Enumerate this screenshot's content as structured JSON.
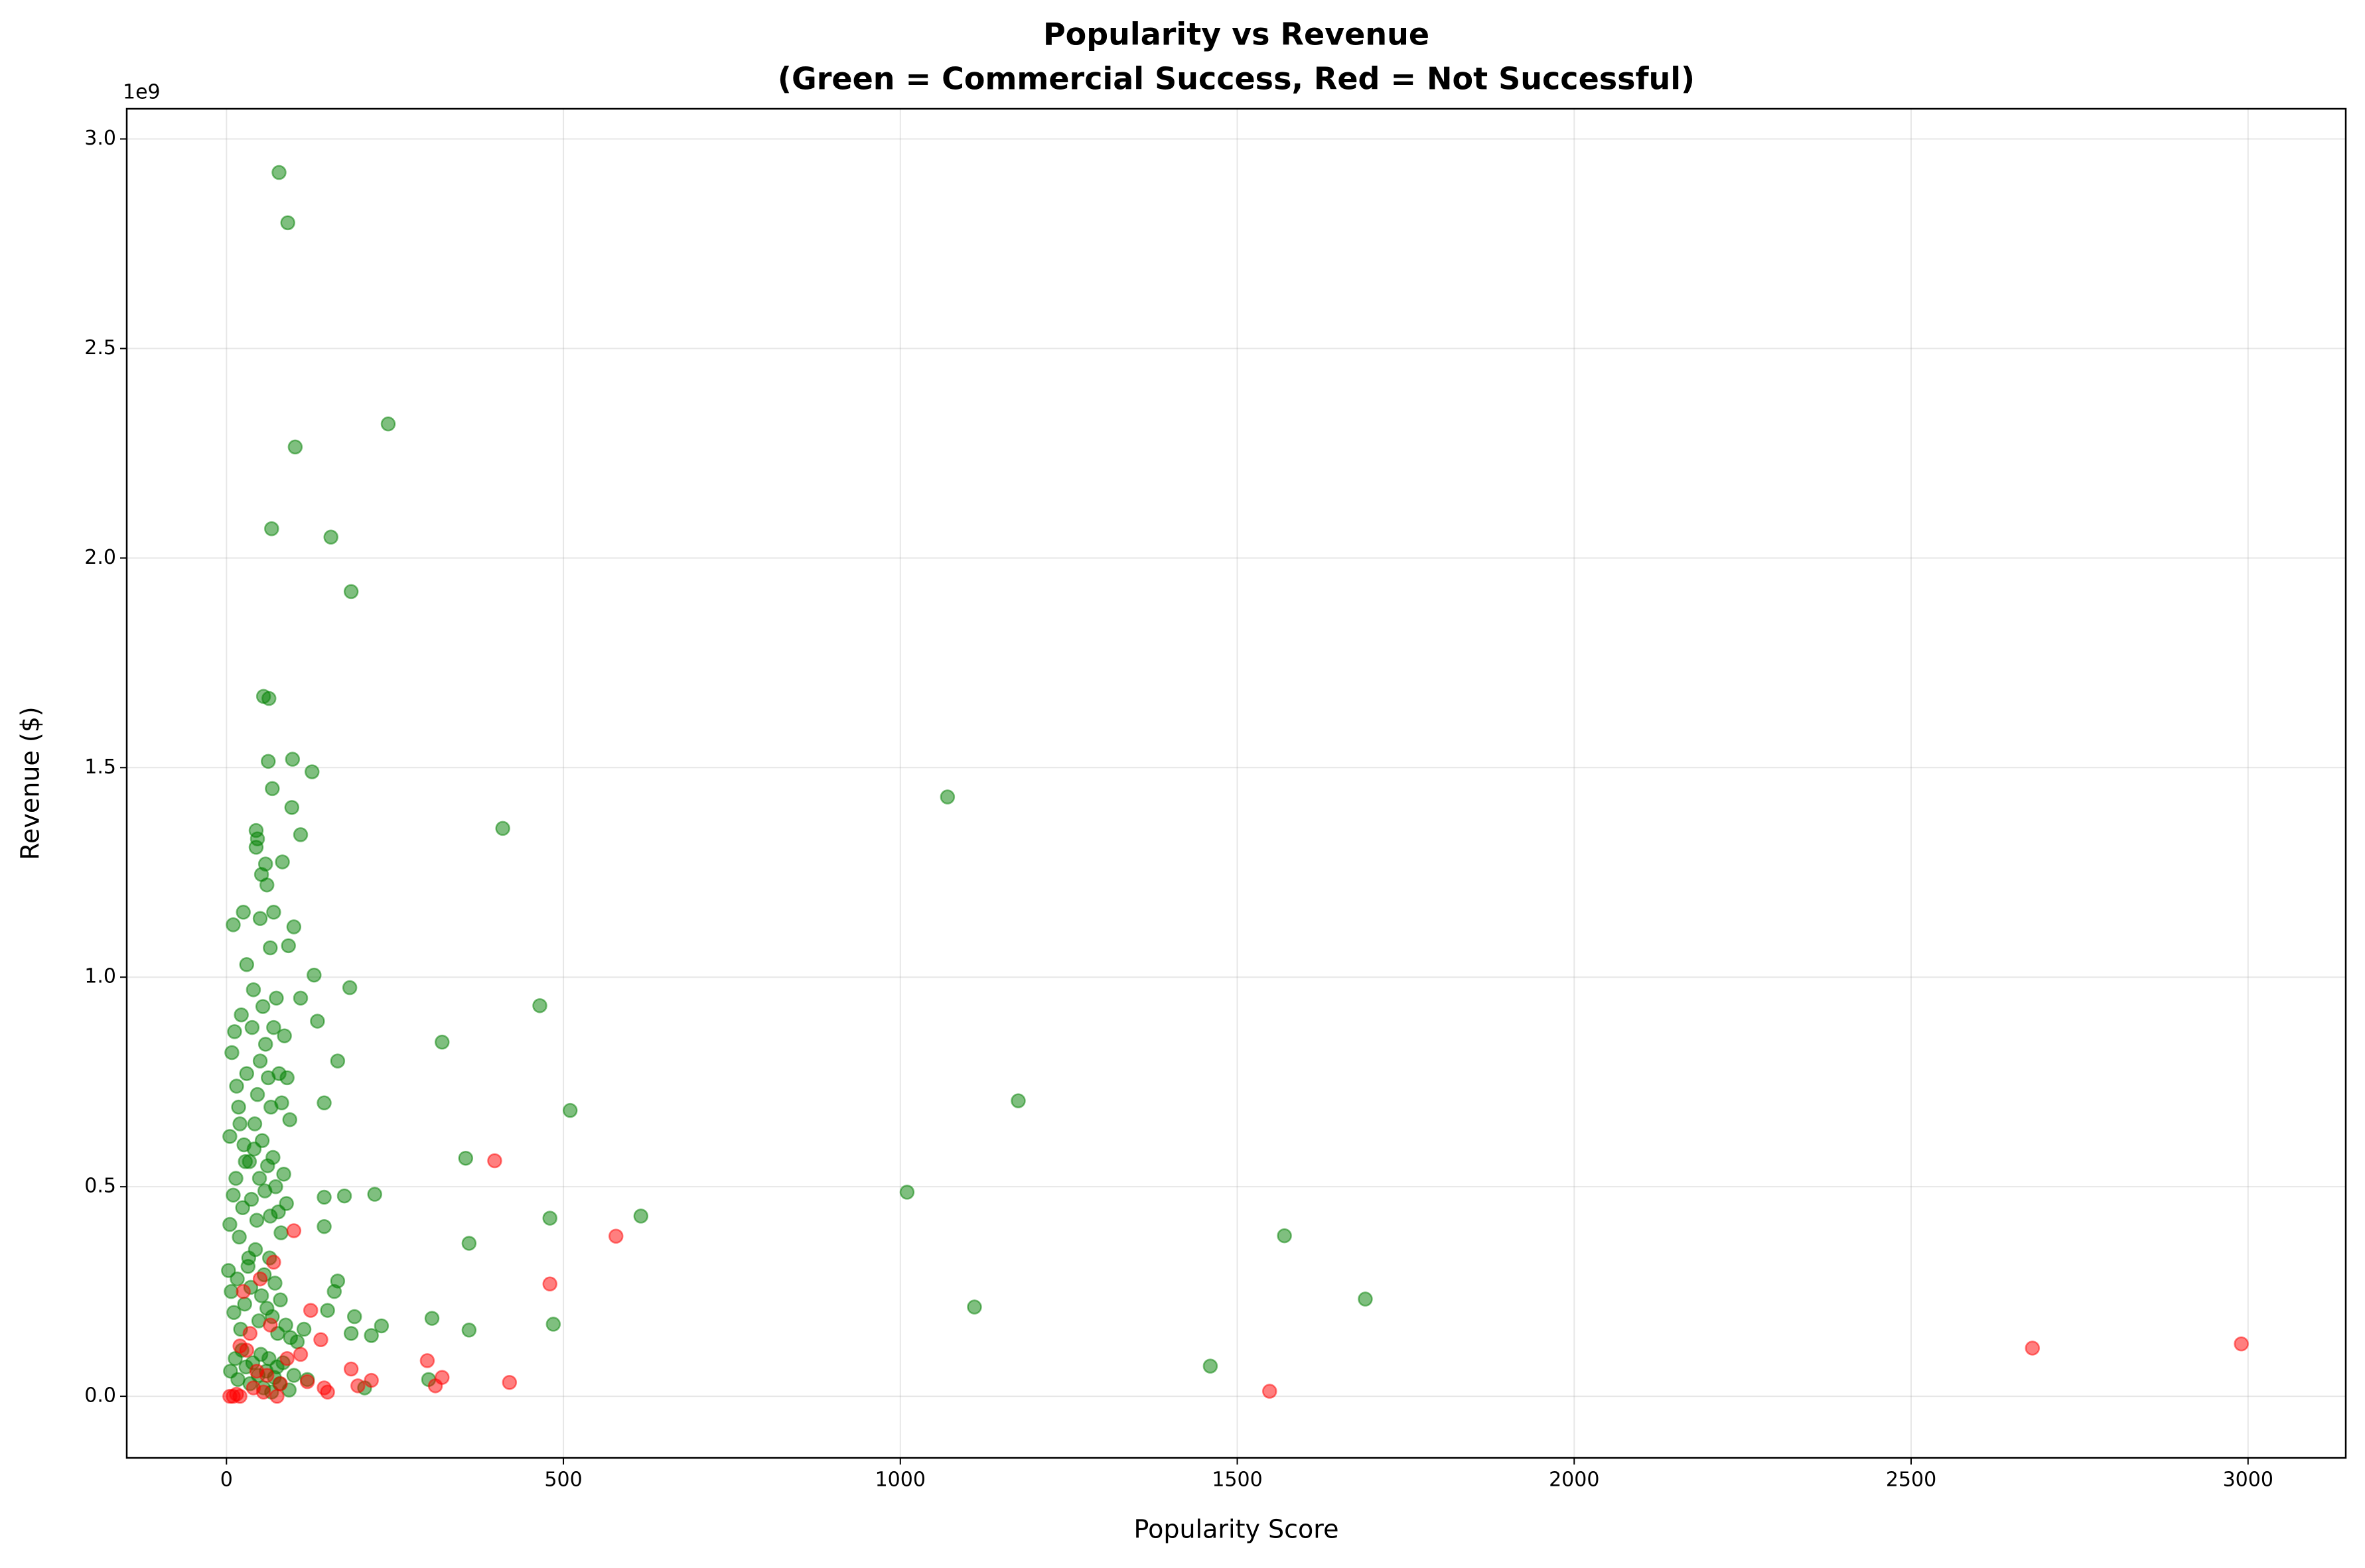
{
  "chart_data": {
    "type": "scatter",
    "title": "Popularity vs Revenue",
    "subtitle": "(Green = Commercial Success, Red = Not Successful)",
    "x_label": "Popularity Score",
    "y_label": "Revenue ($)",
    "y_offset_text": "1e9",
    "xlim": [
      -148,
      3145
    ],
    "ylim": [
      -147000000,
      3072000000
    ],
    "xticks": [
      0,
      500,
      1000,
      1500,
      2000,
      2500,
      3000
    ],
    "yticks": [
      {
        "value": 0,
        "label": "0.0"
      },
      {
        "value": 500000000,
        "label": "0.5"
      },
      {
        "value": 1000000000,
        "label": "1.0"
      },
      {
        "value": 1500000000,
        "label": "1.5"
      },
      {
        "value": 2000000000,
        "label": "2.0"
      },
      {
        "value": 2500000000,
        "label": "2.5"
      },
      {
        "value": 3000000000,
        "label": "3.0"
      }
    ],
    "grid": true,
    "series": [
      {
        "color": "#008000",
        "x": [
          78,
          91,
          240,
          102,
          67,
          155,
          185,
          55,
          63,
          1070,
          62,
          98,
          127,
          68,
          97,
          410,
          44,
          110,
          46,
          44,
          58,
          83,
          52,
          60,
          10,
          25,
          50,
          70,
          100,
          30,
          65,
          92,
          130,
          183,
          465,
          40,
          110,
          320,
          135,
          165,
          1175,
          510,
          145,
          5,
          20,
          355,
          1010,
          220,
          175,
          145,
          615,
          480,
          145,
          1570,
          360,
          165,
          1690,
          1110,
          305,
          485,
          360,
          230,
          185,
          215,
          1460,
          300,
          205,
          160,
          150,
          190,
          8,
          12,
          15,
          18,
          22,
          26,
          30,
          34,
          38,
          42,
          46,
          50,
          54,
          58,
          62,
          66,
          70,
          74,
          78,
          82,
          86,
          90,
          94,
          5,
          10,
          14,
          19,
          24,
          28,
          33,
          37,
          41,
          45,
          49,
          53,
          57,
          61,
          65,
          69,
          73,
          77,
          81,
          85,
          89,
          3,
          7,
          11,
          16,
          21,
          27,
          32,
          36,
          43,
          48,
          52,
          56,
          60,
          64,
          68,
          72,
          76,
          80,
          88,
          95,
          105,
          115,
          6,
          13,
          17,
          23,
          29,
          35,
          39,
          47,
          51,
          55,
          59,
          63,
          67,
          71,
          75,
          79,
          84,
          93,
          100,
          120
        ],
        "values": [
          2920000000,
          2800000000,
          2320000000,
          2265000000,
          2070000000,
          2050000000,
          1920000000,
          1670000000,
          1665000000,
          1430000000,
          1515000000,
          1520000000,
          1490000000,
          1450000000,
          1405000000,
          1355000000,
          1350000000,
          1340000000,
          1330000000,
          1310000000,
          1270000000,
          1275000000,
          1245000000,
          1220000000,
          1125000000,
          1155000000,
          1140000000,
          1155000000,
          1120000000,
          1030000000,
          1070000000,
          1075000000,
          1005000000,
          975000000,
          932000000,
          970000000,
          950000000,
          845000000,
          895000000,
          800000000,
          705000000,
          682000000,
          700000000,
          620000000,
          650000000,
          568000000,
          487000000,
          482000000,
          478000000,
          475000000,
          430000000,
          425000000,
          405000000,
          383000000,
          365000000,
          275000000,
          232000000,
          213000000,
          186000000,
          172000000,
          158000000,
          168000000,
          150000000,
          145000000,
          72000000,
          40000000,
          20000000,
          250000000,
          205000000,
          190000000,
          820000000,
          870000000,
          740000000,
          690000000,
          910000000,
          600000000,
          770000000,
          560000000,
          880000000,
          650000000,
          720000000,
          800000000,
          930000000,
          840000000,
          760000000,
          690000000,
          880000000,
          950000000,
          770000000,
          700000000,
          860000000,
          760000000,
          660000000,
          410000000,
          480000000,
          520000000,
          380000000,
          450000000,
          560000000,
          330000000,
          470000000,
          590000000,
          420000000,
          520000000,
          610000000,
          490000000,
          550000000,
          430000000,
          570000000,
          500000000,
          440000000,
          390000000,
          530000000,
          460000000,
          300000000,
          250000000,
          200000000,
          280000000,
          160000000,
          220000000,
          310000000,
          260000000,
          350000000,
          180000000,
          240000000,
          290000000,
          210000000,
          330000000,
          190000000,
          270000000,
          150000000,
          230000000,
          170000000,
          140000000,
          130000000,
          160000000,
          60000000,
          90000000,
          40000000,
          110000000,
          70000000,
          30000000,
          80000000,
          50000000,
          100000000,
          20000000,
          60000000,
          90000000,
          10000000,
          45000000,
          70000000,
          30000000,
          80000000,
          15000000,
          50000000,
          40000000
        ]
      },
      {
        "color": "#ff0000",
        "x": [
          2990,
          2680,
          1548,
          578,
          398,
          480,
          420,
          320,
          310,
          298,
          215,
          195,
          185,
          150,
          145,
          140,
          125,
          100,
          70,
          20,
          30,
          5,
          10,
          15,
          20,
          40,
          60,
          80,
          50,
          90,
          120,
          110,
          25,
          35,
          45,
          65,
          75,
          55
        ],
        "values": [
          125000000,
          115000000,
          12000000,
          382000000,
          562000000,
          268000000,
          33000000,
          45000000,
          25000000,
          85000000,
          38000000,
          25000000,
          65000000,
          10000000,
          20000000,
          135000000,
          205000000,
          395000000,
          320000000,
          120000000,
          110000000,
          0,
          0,
          5000000,
          0,
          20000000,
          50000000,
          30000000,
          280000000,
          90000000,
          35000000,
          100000000,
          250000000,
          150000000,
          60000000,
          170000000,
          0,
          10000000
        ]
      }
    ]
  }
}
